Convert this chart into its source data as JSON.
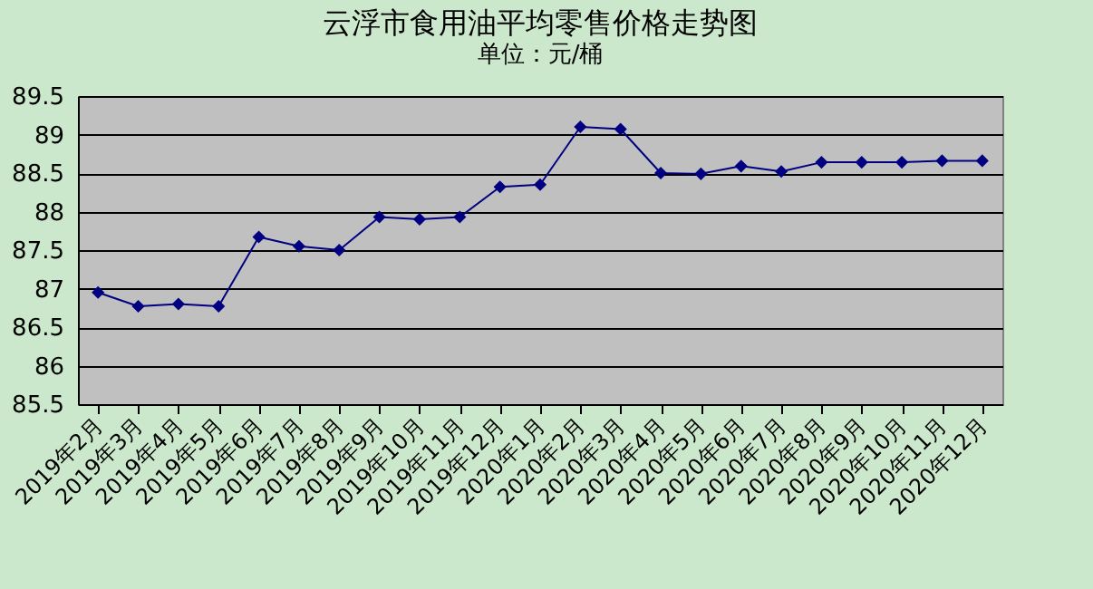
{
  "chart_data": {
    "type": "line",
    "title": "云浮市食用油平均零售价格走势图",
    "subtitle": "单位：元/桶",
    "categories": [
      "2019年2月",
      "2019年3月",
      "2019年4月",
      "2019年5月",
      "2019年6月",
      "2019年7月",
      "2019年8月",
      "2019年9月",
      "2019年10月",
      "2019年11月",
      "2019年12月",
      "2020年1月",
      "2020年2月",
      "2020年3月",
      "2020年4月",
      "2020年5月",
      "2020年6月",
      "2020年7月",
      "2020年8月",
      "2020年9月",
      "2020年10月",
      "2020年11月",
      "2020年12月"
    ],
    "series": [
      {
        "color": "#000080",
        "values": [
          86.95,
          86.77,
          86.8,
          86.77,
          87.67,
          87.55,
          87.5,
          87.93,
          87.9,
          87.93,
          88.32,
          88.35,
          89.1,
          89.07,
          88.5,
          88.49,
          88.59,
          88.52,
          88.64,
          88.64,
          88.64,
          88.66,
          88.66
        ]
      }
    ],
    "ylim": [
      85.5,
      89.5
    ],
    "yticks": [
      85.5,
      86,
      86.5,
      87,
      87.5,
      88,
      88.5,
      89,
      89.5
    ],
    "grid": "y",
    "marker": "diamond",
    "line_style": "solid",
    "legend": false
  }
}
